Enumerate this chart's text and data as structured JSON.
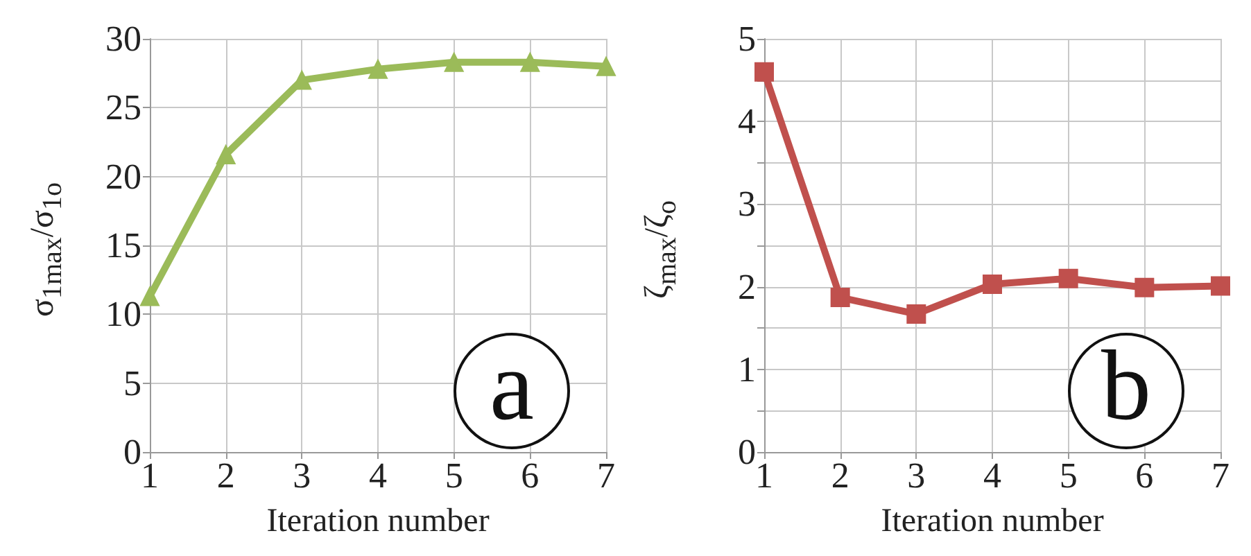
{
  "chart_data": [
    {
      "type": "line",
      "xlabel": "Iteration number",
      "ylabel": "σ$_{1max}$/σ$_{1o}$",
      "x": [
        1,
        2,
        3,
        4,
        5,
        6,
        7
      ],
      "series": [
        {
          "color": "#9bbb59",
          "values": [
            11.3,
            21.6,
            27.0,
            27.8,
            28.3,
            28.3,
            28.0
          ]
        }
      ],
      "xlim": [
        1,
        7
      ],
      "xticks": [
        1,
        2,
        3,
        4,
        5,
        6,
        7
      ],
      "ylim": [
        0,
        30
      ],
      "yticks": [
        0,
        5,
        10,
        15,
        20,
        25,
        30
      ],
      "grid": true,
      "marker": "triangle",
      "line_style": "solid",
      "annotations": [
        "a"
      ]
    },
    {
      "type": "line",
      "xlabel": "Iteration number",
      "ylabel": "ζ$_{max}$/ζ$_{o}$",
      "x": [
        1,
        2,
        3,
        4,
        5,
        6,
        7
      ],
      "series": [
        {
          "color": "#c0504d",
          "values": [
            4.6,
            1.87,
            1.67,
            2.03,
            2.1,
            1.99,
            2.01
          ]
        }
      ],
      "xlim": [
        1,
        7
      ],
      "xticks": [
        1,
        2,
        3,
        4,
        5,
        6,
        7
      ],
      "ylim": [
        0,
        5
      ],
      "yticks": [
        0,
        {
          "value": 0.5,
          "label": null
        },
        1,
        {
          "value": 1.5,
          "label": null
        },
        2,
        {
          "value": 2.5,
          "label": null
        },
        3,
        {
          "value": 3.5,
          "label": null
        },
        4,
        {
          "value": 4.5,
          "label": null
        },
        5
      ],
      "grid": true,
      "marker": "square",
      "line_style": "solid",
      "annotations": [
        "b"
      ]
    }
  ]
}
